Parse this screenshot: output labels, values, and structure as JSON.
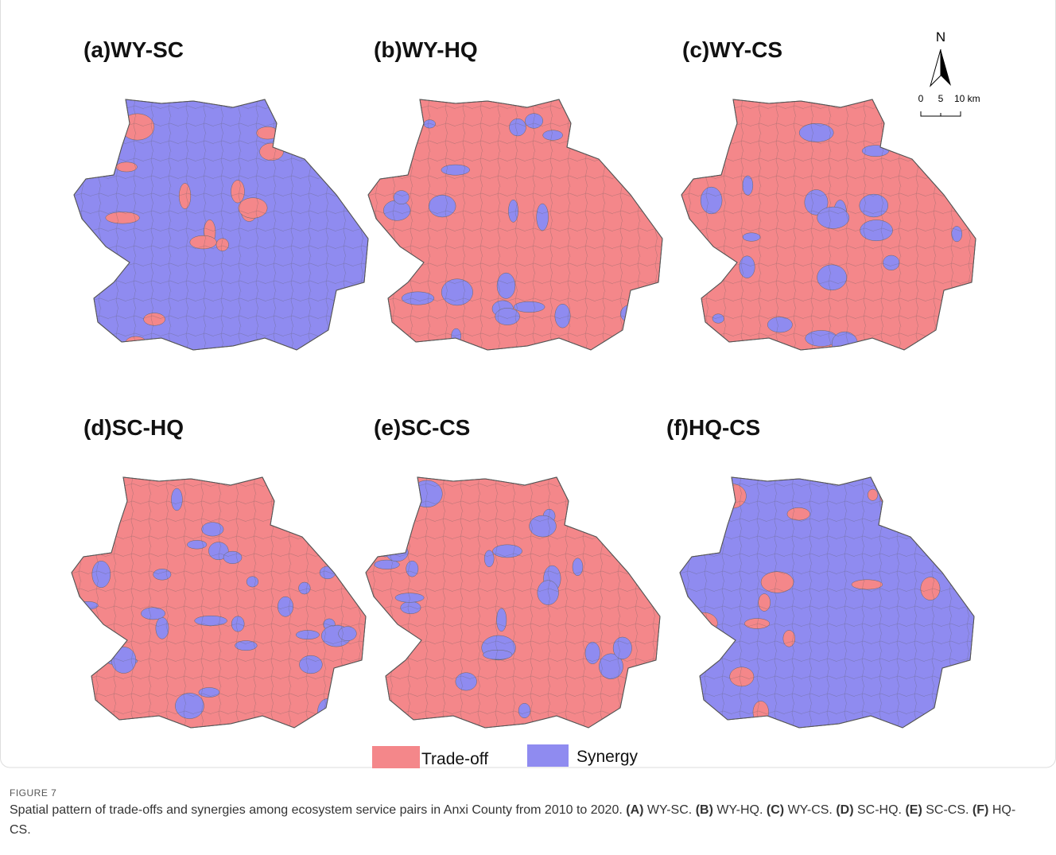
{
  "panels": [
    {
      "title": "(a)WY-SC"
    },
    {
      "title": "(b)WY-HQ"
    },
    {
      "title": "(c)WY-CS"
    },
    {
      "title": "(d)SC-HQ"
    },
    {
      "title": "(e)SC-CS"
    },
    {
      "title": "(f)HQ-CS"
    }
  ],
  "north_arrow": {
    "label": "N"
  },
  "scale_bar": {
    "labels": [
      "0",
      "5",
      "10 km"
    ]
  },
  "legend": {
    "items": [
      "Trade-off",
      "Synergy"
    ]
  },
  "caption": {
    "label": "FIGURE 7",
    "text": "Spatial pattern of trade-offs and synergies among ecosystem service pairs in Anxi County from 2010 to 2020.",
    "items": [
      {
        "key": "(A)",
        "text": "WY-SC."
      },
      {
        "key": "(B)",
        "text": "WY-HQ."
      },
      {
        "key": "(C)",
        "text": "WY-CS."
      },
      {
        "key": "(D)",
        "text": "SC-HQ."
      },
      {
        "key": "(E)",
        "text": "SC-CS."
      },
      {
        "key": "(F)",
        "text": "HQ-CS."
      }
    ]
  }
}
